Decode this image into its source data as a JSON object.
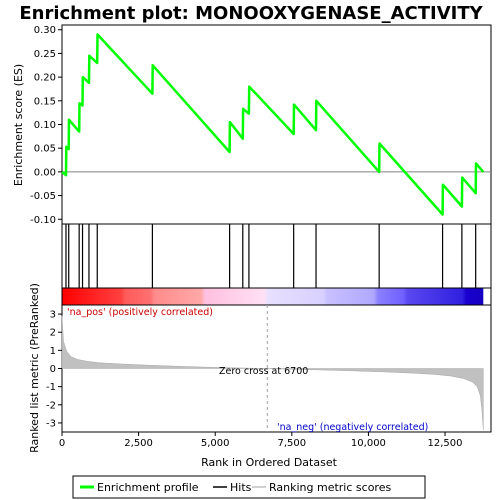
{
  "chart_data": {
    "type": "line",
    "title": "Enrichment plot: MONOOXYGENASE_ACTIVITY",
    "xlabel": "Rank in Ordered Dataset",
    "ylabel_top": "Enrichment score (ES)",
    "ylabel_bottom": "Ranked list metric (PreRanked)",
    "xlim": [
      0,
      14000
    ],
    "xticks": [
      0,
      2500,
      5000,
      7500,
      10000,
      12500
    ],
    "xtick_labels": [
      "0",
      "2,500",
      "5,000",
      "7,500",
      "10,000",
      "12,500"
    ],
    "es_ylim": [
      -0.11,
      0.31
    ],
    "es_yticks": [
      -0.1,
      -0.05,
      0.0,
      0.05,
      0.1,
      0.15,
      0.2,
      0.25,
      0.3
    ],
    "es_ytick_labels": [
      "-0.10",
      "-0.05",
      "0.00",
      "0.05",
      "0.10",
      "0.15",
      "0.20",
      "0.25",
      "0.30"
    ],
    "metric_ylim": [
      -3.5,
      3.5
    ],
    "metric_yticks": [
      -3,
      -2,
      -1,
      0,
      1,
      2,
      3
    ],
    "metric_ytick_labels": [
      "-3",
      "-2",
      "-1",
      "0",
      "1",
      "2",
      "3"
    ],
    "zero_cross": 6700,
    "zero_cross_label": "Zero cross at 6700",
    "pos_label": "'na_pos' (positively correlated)",
    "neg_label": "'na_neg' (negatively correlated)",
    "series": [
      {
        "name": "Enrichment profile",
        "color": "#00ff00",
        "x": [
          0,
          130,
          140,
          220,
          230,
          560,
          570,
          670,
          680,
          880,
          890,
          1150,
          1160,
          2950,
          2960,
          5470,
          5480,
          5900,
          5910,
          6100,
          6110,
          7560,
          7570,
          8290,
          8300,
          10350,
          10360,
          12420,
          12430,
          13050,
          13060,
          13500,
          13510,
          13750
        ],
        "y": [
          0.0,
          -0.007,
          0.053,
          0.048,
          0.11,
          0.085,
          0.145,
          0.14,
          0.2,
          0.188,
          0.245,
          0.23,
          0.29,
          0.165,
          0.225,
          0.042,
          0.105,
          0.07,
          0.133,
          0.123,
          0.18,
          0.08,
          0.142,
          0.088,
          0.15,
          0.0,
          0.06,
          -0.09,
          -0.027,
          -0.073,
          -0.012,
          -0.045,
          0.018,
          0.0
        ]
      }
    ],
    "hits": [
      130,
      220,
      560,
      670,
      880,
      1150,
      2950,
      5470,
      5900,
      6100,
      7560,
      8290,
      10350,
      12420,
      13050,
      13500
    ],
    "metric_curve": {
      "x": [
        0,
        50,
        150,
        300,
        500,
        800,
        1200,
        2000,
        3000,
        4000,
        5000,
        6000,
        6700,
        7500,
        8500,
        9500,
        10500,
        11500,
        12200,
        12700,
        13100,
        13400,
        13550,
        13650,
        13700,
        13750
      ],
      "y": [
        2.9,
        1.5,
        0.95,
        0.65,
        0.5,
        0.4,
        0.32,
        0.24,
        0.17,
        0.11,
        0.06,
        0.02,
        0.0,
        -0.04,
        -0.08,
        -0.13,
        -0.19,
        -0.26,
        -0.33,
        -0.42,
        -0.55,
        -0.75,
        -1.0,
        -1.5,
        -2.2,
        -3.4
      ]
    },
    "legend": [
      {
        "label": "Enrichment profile",
        "color": "#00ff00"
      },
      {
        "label": "Hits",
        "color": "#000000"
      },
      {
        "label": "Ranking metric scores",
        "color": "#c0c0c0"
      }
    ]
  }
}
